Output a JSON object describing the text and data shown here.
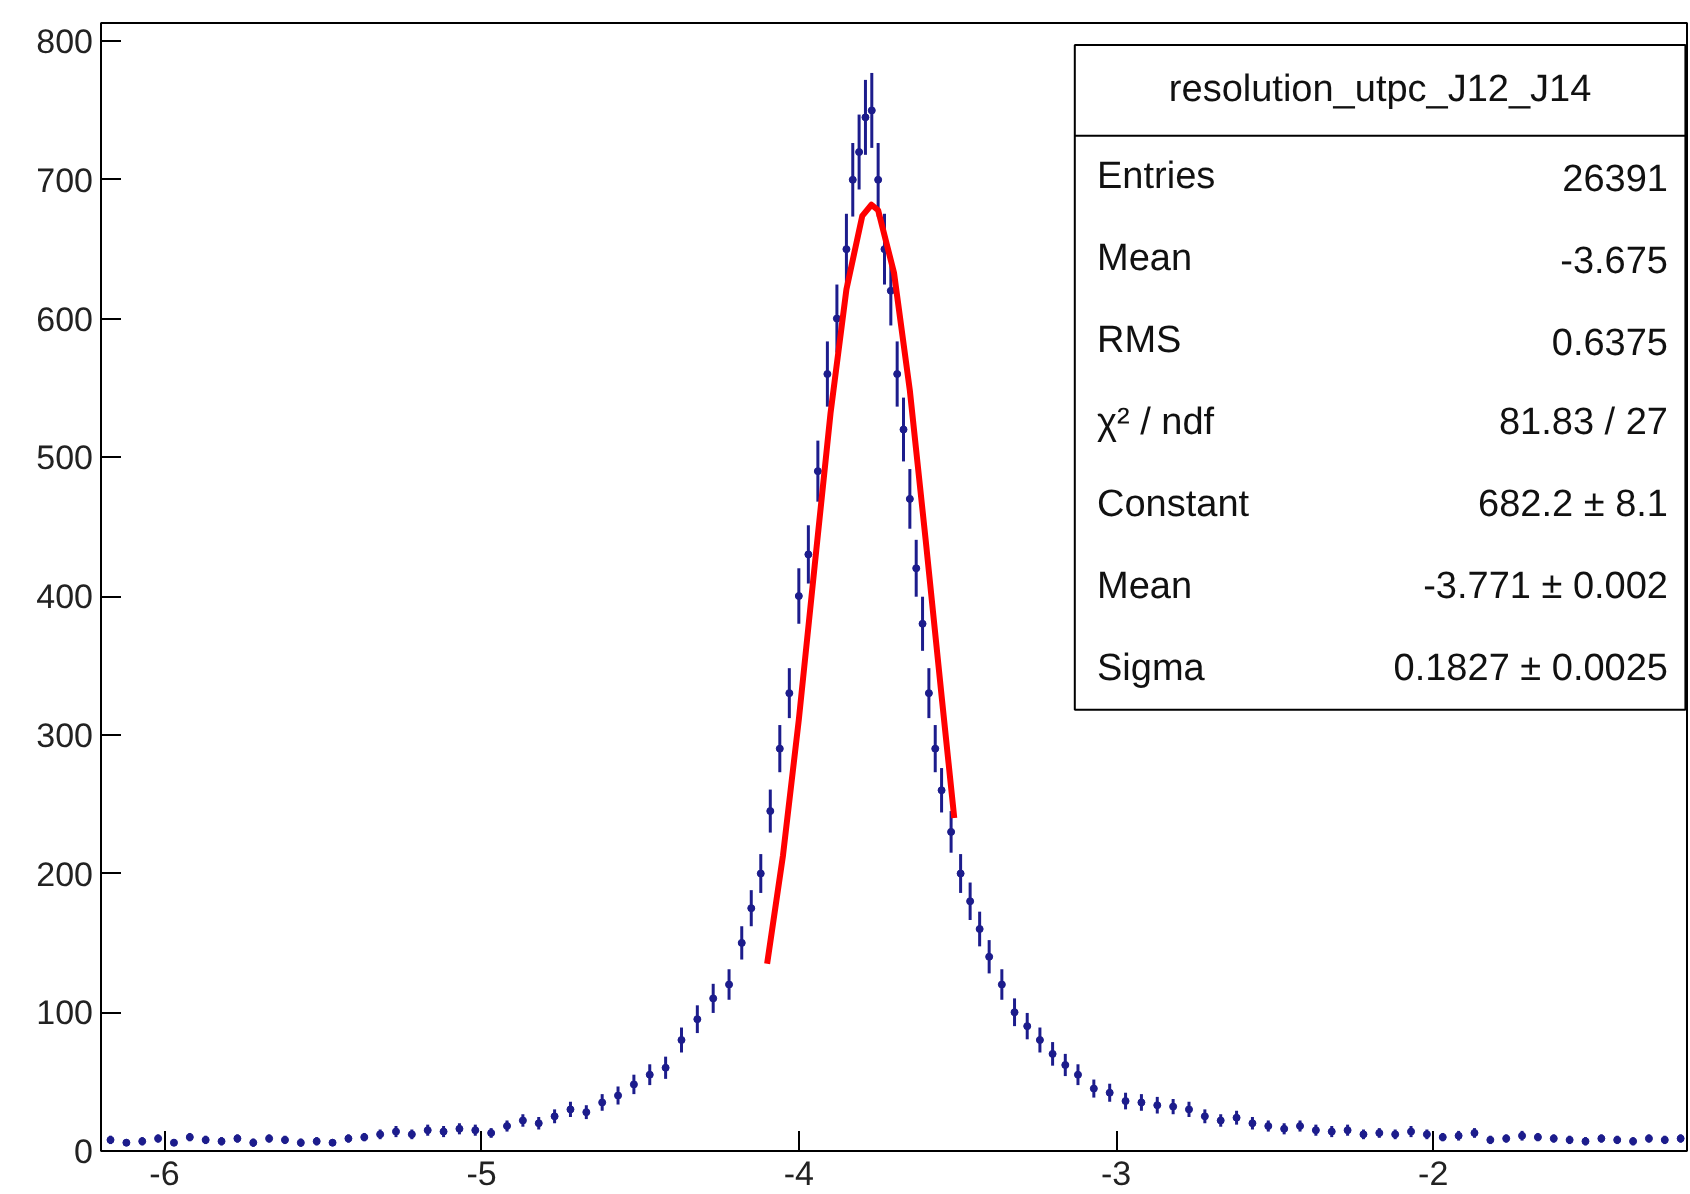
{
  "chart_data": {
    "type": "scatter",
    "title": "resolution_utpc_J12_J14",
    "annotations": [
      "Entries",
      "26391",
      "Mean",
      "-3.675",
      "RMS",
      "0.6375",
      "χ² / ndf",
      "81.83 / 27",
      "Constant",
      "682.2 ± 8.1",
      "Mean",
      "-3.771 ± 0.002",
      "Sigma",
      "0.1827 ± 0.0025"
    ],
    "xlim": [
      -6.2,
      -1.2
    ],
    "xticks": [
      -6,
      -5,
      -4,
      -3,
      -2
    ],
    "ylim": [
      0,
      813
    ],
    "yticks": [
      0,
      100,
      200,
      300,
      400,
      500,
      600,
      700,
      800
    ],
    "grid": false,
    "series": [
      {
        "color": "#1c1c8c",
        "marker": "circle",
        "x": [
          -6.17,
          -6.12,
          -6.07,
          -6.02,
          -5.97,
          -5.92,
          -5.87,
          -5.82,
          -5.77,
          -5.72,
          -5.67,
          -5.62,
          -5.57,
          -5.52,
          -5.47,
          -5.42,
          -5.37,
          -5.32,
          -5.27,
          -5.22,
          -5.17,
          -5.12,
          -5.07,
          -5.02,
          -4.97,
          -4.92,
          -4.87,
          -4.82,
          -4.77,
          -4.72,
          -4.67,
          -4.62,
          -4.57,
          -4.52,
          -4.47,
          -4.42,
          -4.37,
          -4.32,
          -4.27,
          -4.22,
          -4.18,
          -4.15,
          -4.12,
          -4.09,
          -4.06,
          -4.03,
          -4.0,
          -3.97,
          -3.94,
          -3.91,
          -3.88,
          -3.85,
          -3.83,
          -3.81,
          -3.79,
          -3.77,
          -3.75,
          -3.73,
          -3.71,
          -3.69,
          -3.67,
          -3.65,
          -3.63,
          -3.61,
          -3.59,
          -3.57,
          -3.55,
          -3.52,
          -3.49,
          -3.46,
          -3.43,
          -3.4,
          -3.36,
          -3.32,
          -3.28,
          -3.24,
          -3.2,
          -3.16,
          -3.12,
          -3.07,
          -3.02,
          -2.97,
          -2.92,
          -2.87,
          -2.82,
          -2.77,
          -2.72,
          -2.67,
          -2.62,
          -2.57,
          -2.52,
          -2.47,
          -2.42,
          -2.37,
          -2.32,
          -2.27,
          -2.22,
          -2.17,
          -2.12,
          -2.07,
          -2.02,
          -1.97,
          -1.92,
          -1.87,
          -1.82,
          -1.77,
          -1.72,
          -1.67,
          -1.62,
          -1.57,
          -1.52,
          -1.47,
          -1.42,
          -1.37,
          -1.32,
          -1.27,
          -1.22
        ],
        "values": [
          8,
          6,
          7,
          9,
          6,
          10,
          8,
          7,
          9,
          6,
          9,
          8,
          6,
          7,
          6,
          9,
          10,
          12,
          14,
          12,
          15,
          14,
          16,
          15,
          13,
          18,
          22,
          20,
          25,
          30,
          28,
          35,
          40,
          48,
          55,
          60,
          80,
          95,
          110,
          120,
          150,
          175,
          200,
          245,
          290,
          330,
          400,
          430,
          490,
          560,
          600,
          650,
          700,
          720,
          745,
          750,
          700,
          650,
          620,
          560,
          520,
          470,
          420,
          380,
          330,
          290,
          260,
          230,
          200,
          180,
          160,
          140,
          120,
          100,
          90,
          80,
          70,
          62,
          55,
          45,
          42,
          36,
          35,
          33,
          32,
          30,
          25,
          22,
          24,
          20,
          18,
          16,
          18,
          15,
          14,
          15,
          12,
          13,
          12,
          14,
          12,
          10,
          11,
          13,
          8,
          9,
          11,
          10,
          9,
          8,
          7,
          9,
          8,
          7,
          9,
          8,
          9
        ],
        "errors": [
          3,
          2.5,
          3,
          3,
          2.5,
          3,
          3,
          3,
          3,
          3,
          3,
          3,
          3,
          3,
          2.5,
          3,
          3,
          3.5,
          4,
          3.5,
          4,
          4,
          4,
          4,
          3.5,
          4,
          4.5,
          4.5,
          5,
          5.5,
          5,
          6,
          6.5,
          7,
          7.5,
          8,
          9,
          10,
          10.5,
          11,
          12,
          13,
          14,
          15.5,
          17,
          18,
          20,
          21,
          22,
          23.5,
          24.5,
          25.5,
          26.5,
          27,
          27,
          27,
          26.5,
          25.5,
          25,
          23.5,
          23,
          21.5,
          20.5,
          19.5,
          18,
          17,
          16,
          15,
          14,
          13.5,
          12.5,
          12,
          11,
          10,
          9.5,
          9,
          8.5,
          8,
          7.5,
          6.5,
          6.5,
          6,
          6,
          6,
          5.5,
          5.5,
          5,
          4.5,
          5,
          4.5,
          4,
          4,
          4,
          4,
          4,
          4,
          3.5,
          3.5,
          3.5,
          4,
          3.5,
          3,
          3.5,
          3.5,
          3,
          3,
          3.5,
          3,
          3,
          3,
          3,
          3,
          3,
          3,
          3,
          3,
          3
        ],
        "xerrors": [
          0.01,
          0.01,
          0.01,
          0.01,
          0.01,
          0.01,
          0.01,
          0.01,
          0.01,
          0.01,
          0.01,
          0.01,
          0.01,
          0.01,
          0.01,
          0.01,
          0.01,
          0.01,
          0.01,
          0.01,
          0.01,
          0.01,
          0.01,
          0.01,
          0.01,
          0.01,
          0.01,
          0.01,
          0.01,
          0.01,
          0.01,
          0.01,
          0.01,
          0.01,
          0.01,
          0.01,
          0.01,
          0.01,
          0.01,
          0.01,
          0.01,
          0.01,
          0.01,
          0.01,
          0.01,
          0.01,
          0.01,
          0.01,
          0.01,
          0.01,
          0.01,
          0.01,
          0.01,
          0.01,
          0.01,
          0.01,
          0.01,
          0.01,
          0.01,
          0.01,
          0.01,
          0.01,
          0.01,
          0.01,
          0.01,
          0.01,
          0.01,
          0.01,
          0.01,
          0.01,
          0.01,
          0.01,
          0.01,
          0.01,
          0.01,
          0.01,
          0.01,
          0.01,
          0.01,
          0.01,
          0.01,
          0.01,
          0.01,
          0.01,
          0.01,
          0.01,
          0.01,
          0.01,
          0.01,
          0.01,
          0.01,
          0.01,
          0.01,
          0.01,
          0.01,
          0.01,
          0.01,
          0.01,
          0.01,
          0.01,
          0.01,
          0.01,
          0.01,
          0.01,
          0.01,
          0.01,
          0.01,
          0.01,
          0.01,
          0.01,
          0.01,
          0.01,
          0.01,
          0.01,
          0.01,
          0.01,
          0.01
        ]
      },
      {
        "type": "line",
        "color": "#ff0000",
        "x": [
          -4.1,
          -4.05,
          -4.0,
          -3.95,
          -3.9,
          -3.85,
          -3.8,
          -3.771,
          -3.75,
          -3.7,
          -3.65,
          -3.6,
          -3.55,
          -3.51
        ],
        "values": [
          135,
          213,
          311,
          422,
          532,
          621,
          674,
          682,
          678,
          633,
          548,
          440,
          328,
          240
        ]
      }
    ]
  }
}
